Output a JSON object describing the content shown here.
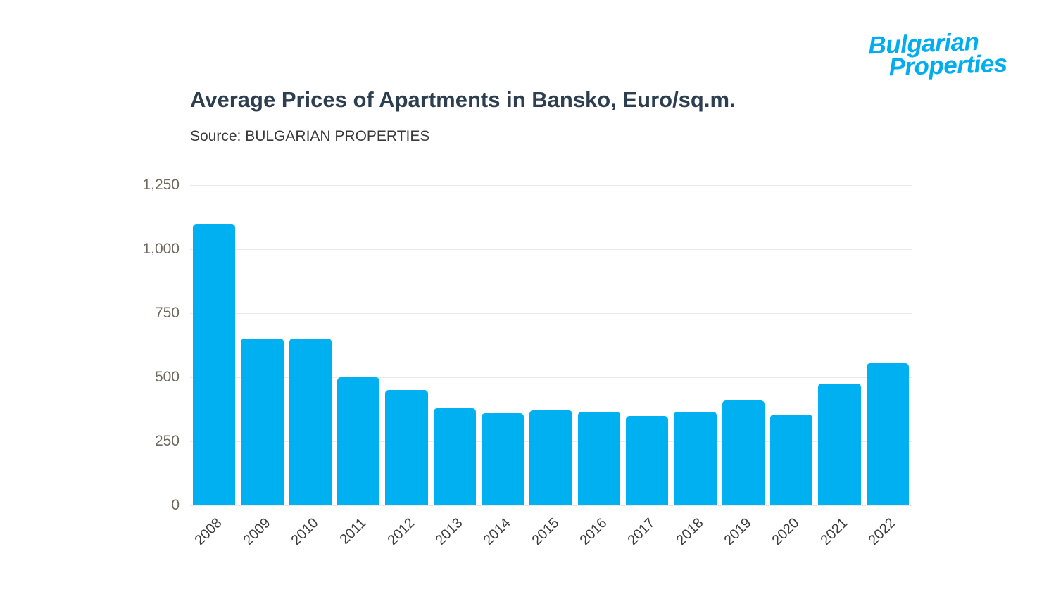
{
  "logo": {
    "line1": "Bulgarian",
    "line2": "Properties",
    "color": "#00aeef"
  },
  "chart_data": {
    "type": "bar",
    "title": "Average Prices of Apartments in Bansko, Euro/sq.m.",
    "source": "Source: BULGARIAN PROPERTIES",
    "categories": [
      "2008",
      "2009",
      "2010",
      "2011",
      "2012",
      "2013",
      "2014",
      "2015",
      "2016",
      "2017",
      "2018",
      "2019",
      "2020",
      "2021",
      "2022"
    ],
    "values": [
      1100,
      650,
      650,
      500,
      450,
      380,
      360,
      370,
      365,
      350,
      365,
      410,
      355,
      475,
      555
    ],
    "xlabel": "",
    "ylabel": "",
    "ylim": [
      0,
      1250
    ],
    "yticks": [
      0,
      250,
      500,
      750,
      1000,
      1250
    ],
    "ytick_labels": [
      "0",
      "250",
      "500",
      "750",
      "1,000",
      "1,250"
    ],
    "bar_color": "#00b0f0",
    "grid": true,
    "gridline_color": "#e9e9e9",
    "legend": "none"
  }
}
